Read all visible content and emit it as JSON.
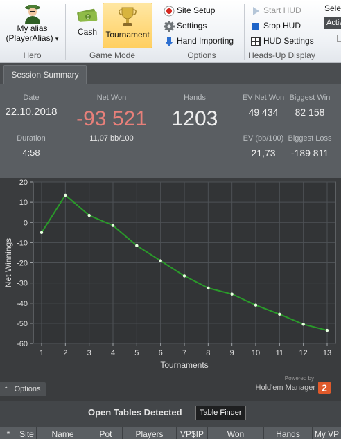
{
  "ribbon": {
    "hero": {
      "alias_line1": "My alias",
      "alias_line2": "(PlayerAlias)",
      "dropdown_arrow": "▾",
      "group_title": "Hero"
    },
    "game_mode": {
      "cash_label": "Cash",
      "tournament_label": "Tournament",
      "group_title": "Game Mode"
    },
    "options": {
      "site_setup": "Site Setup",
      "settings": "Settings",
      "hand_importing": "Hand Importing",
      "group_title": "Options"
    },
    "hud": {
      "start_hud": "Start HUD",
      "stop_hud": "Stop HUD",
      "hud_settings": "HUD Settings",
      "group_title": "Heads-Up Display"
    },
    "overflow": {
      "select_label": "Selec",
      "active_label": "Activ"
    }
  },
  "tabs": [
    {
      "label": "Session Summary"
    }
  ],
  "summary": {
    "date_label": "Date",
    "date_value": "22.10.2018",
    "duration_label": "Duration",
    "duration_value": "4:58",
    "net_won_label": "Net Won",
    "net_won_value": "-93 521",
    "bb_value": "11,07 bb/100",
    "hands_label": "Hands",
    "hands_value": "1203",
    "ev_net_won_label": "EV Net Won",
    "ev_net_won_value": "49 434",
    "ev_bb_label": "EV (bb/100)",
    "ev_bb_value": "21,73",
    "biggest_win_label": "Biggest Win",
    "biggest_win_value": "82 158",
    "biggest_loss_label": "Biggest Loss",
    "biggest_loss_value": "-189 811",
    "net_won_color": "#e8807a"
  },
  "chart_data": {
    "type": "line",
    "title": "",
    "xlabel": "Tournaments",
    "ylabel": "Net Winnings",
    "x": [
      1,
      2,
      3,
      4,
      5,
      6,
      7,
      8,
      9,
      10,
      11,
      12,
      13
    ],
    "series": [
      {
        "values": [
          -5,
          13.5,
          3.5,
          -1.5,
          -11.5,
          -19,
          -26.5,
          -32.5,
          -35.5,
          -41,
          -45.5,
          -50.5,
          -53.5
        ],
        "color": "#2a9a2a"
      }
    ],
    "xlim": [
      1,
      13
    ],
    "ylim": [
      -60,
      20
    ],
    "yticks": [
      20,
      10,
      0,
      -10,
      -20,
      -30,
      -40,
      -50,
      -60
    ],
    "xticks": [
      1,
      2,
      3,
      4,
      5,
      6,
      7,
      8,
      9,
      10,
      11,
      12,
      13
    ],
    "grid": true
  },
  "chart_footer": {
    "options_label": "Options",
    "options_icon": "chevron-up-icon",
    "powered_by": "Powered by",
    "brand": "Hold'em Manager",
    "brand_badge": "2"
  },
  "open_tables": {
    "title": "Open Tables Detected",
    "table_finder_label": "Table Finder",
    "columns": [
      "*",
      "Site",
      "Name",
      "Pot",
      "Players",
      "VP$IP",
      "Won",
      "Hands",
      "My VP"
    ]
  }
}
